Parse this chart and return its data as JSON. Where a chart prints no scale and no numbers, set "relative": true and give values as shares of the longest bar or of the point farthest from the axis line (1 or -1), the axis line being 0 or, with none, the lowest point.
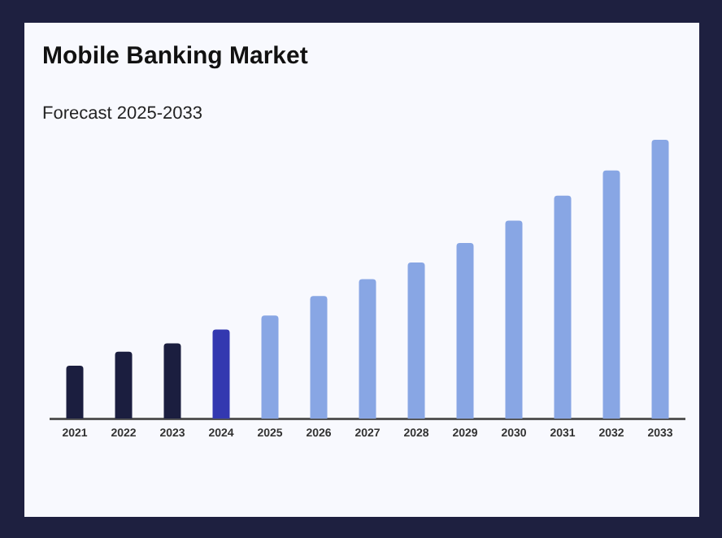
{
  "chart_data": {
    "type": "bar",
    "title": "Mobile Banking Market",
    "subtitle": "Forecast 2025-2033",
    "categories": [
      "2021",
      "2022",
      "2023",
      "2024",
      "2025",
      "2026",
      "2027",
      "2028",
      "2029",
      "2030",
      "2031",
      "2032",
      "2033"
    ],
    "values": [
      0.19,
      0.24,
      0.27,
      0.32,
      0.37,
      0.44,
      0.5,
      0.56,
      0.63,
      0.71,
      0.8,
      0.89,
      1
    ],
    "colors": [
      "#1b1e3f",
      "#1b1e3f",
      "#1b1e3f",
      "#3338b0",
      "#88a6e4",
      "#88a6e4",
      "#88a6e4",
      "#88a6e4",
      "#88a6e4",
      "#88a6e4",
      "#88a6e4",
      "#88a6e4",
      "#88a6e4"
    ],
    "relative": true,
    "grid": false
  }
}
